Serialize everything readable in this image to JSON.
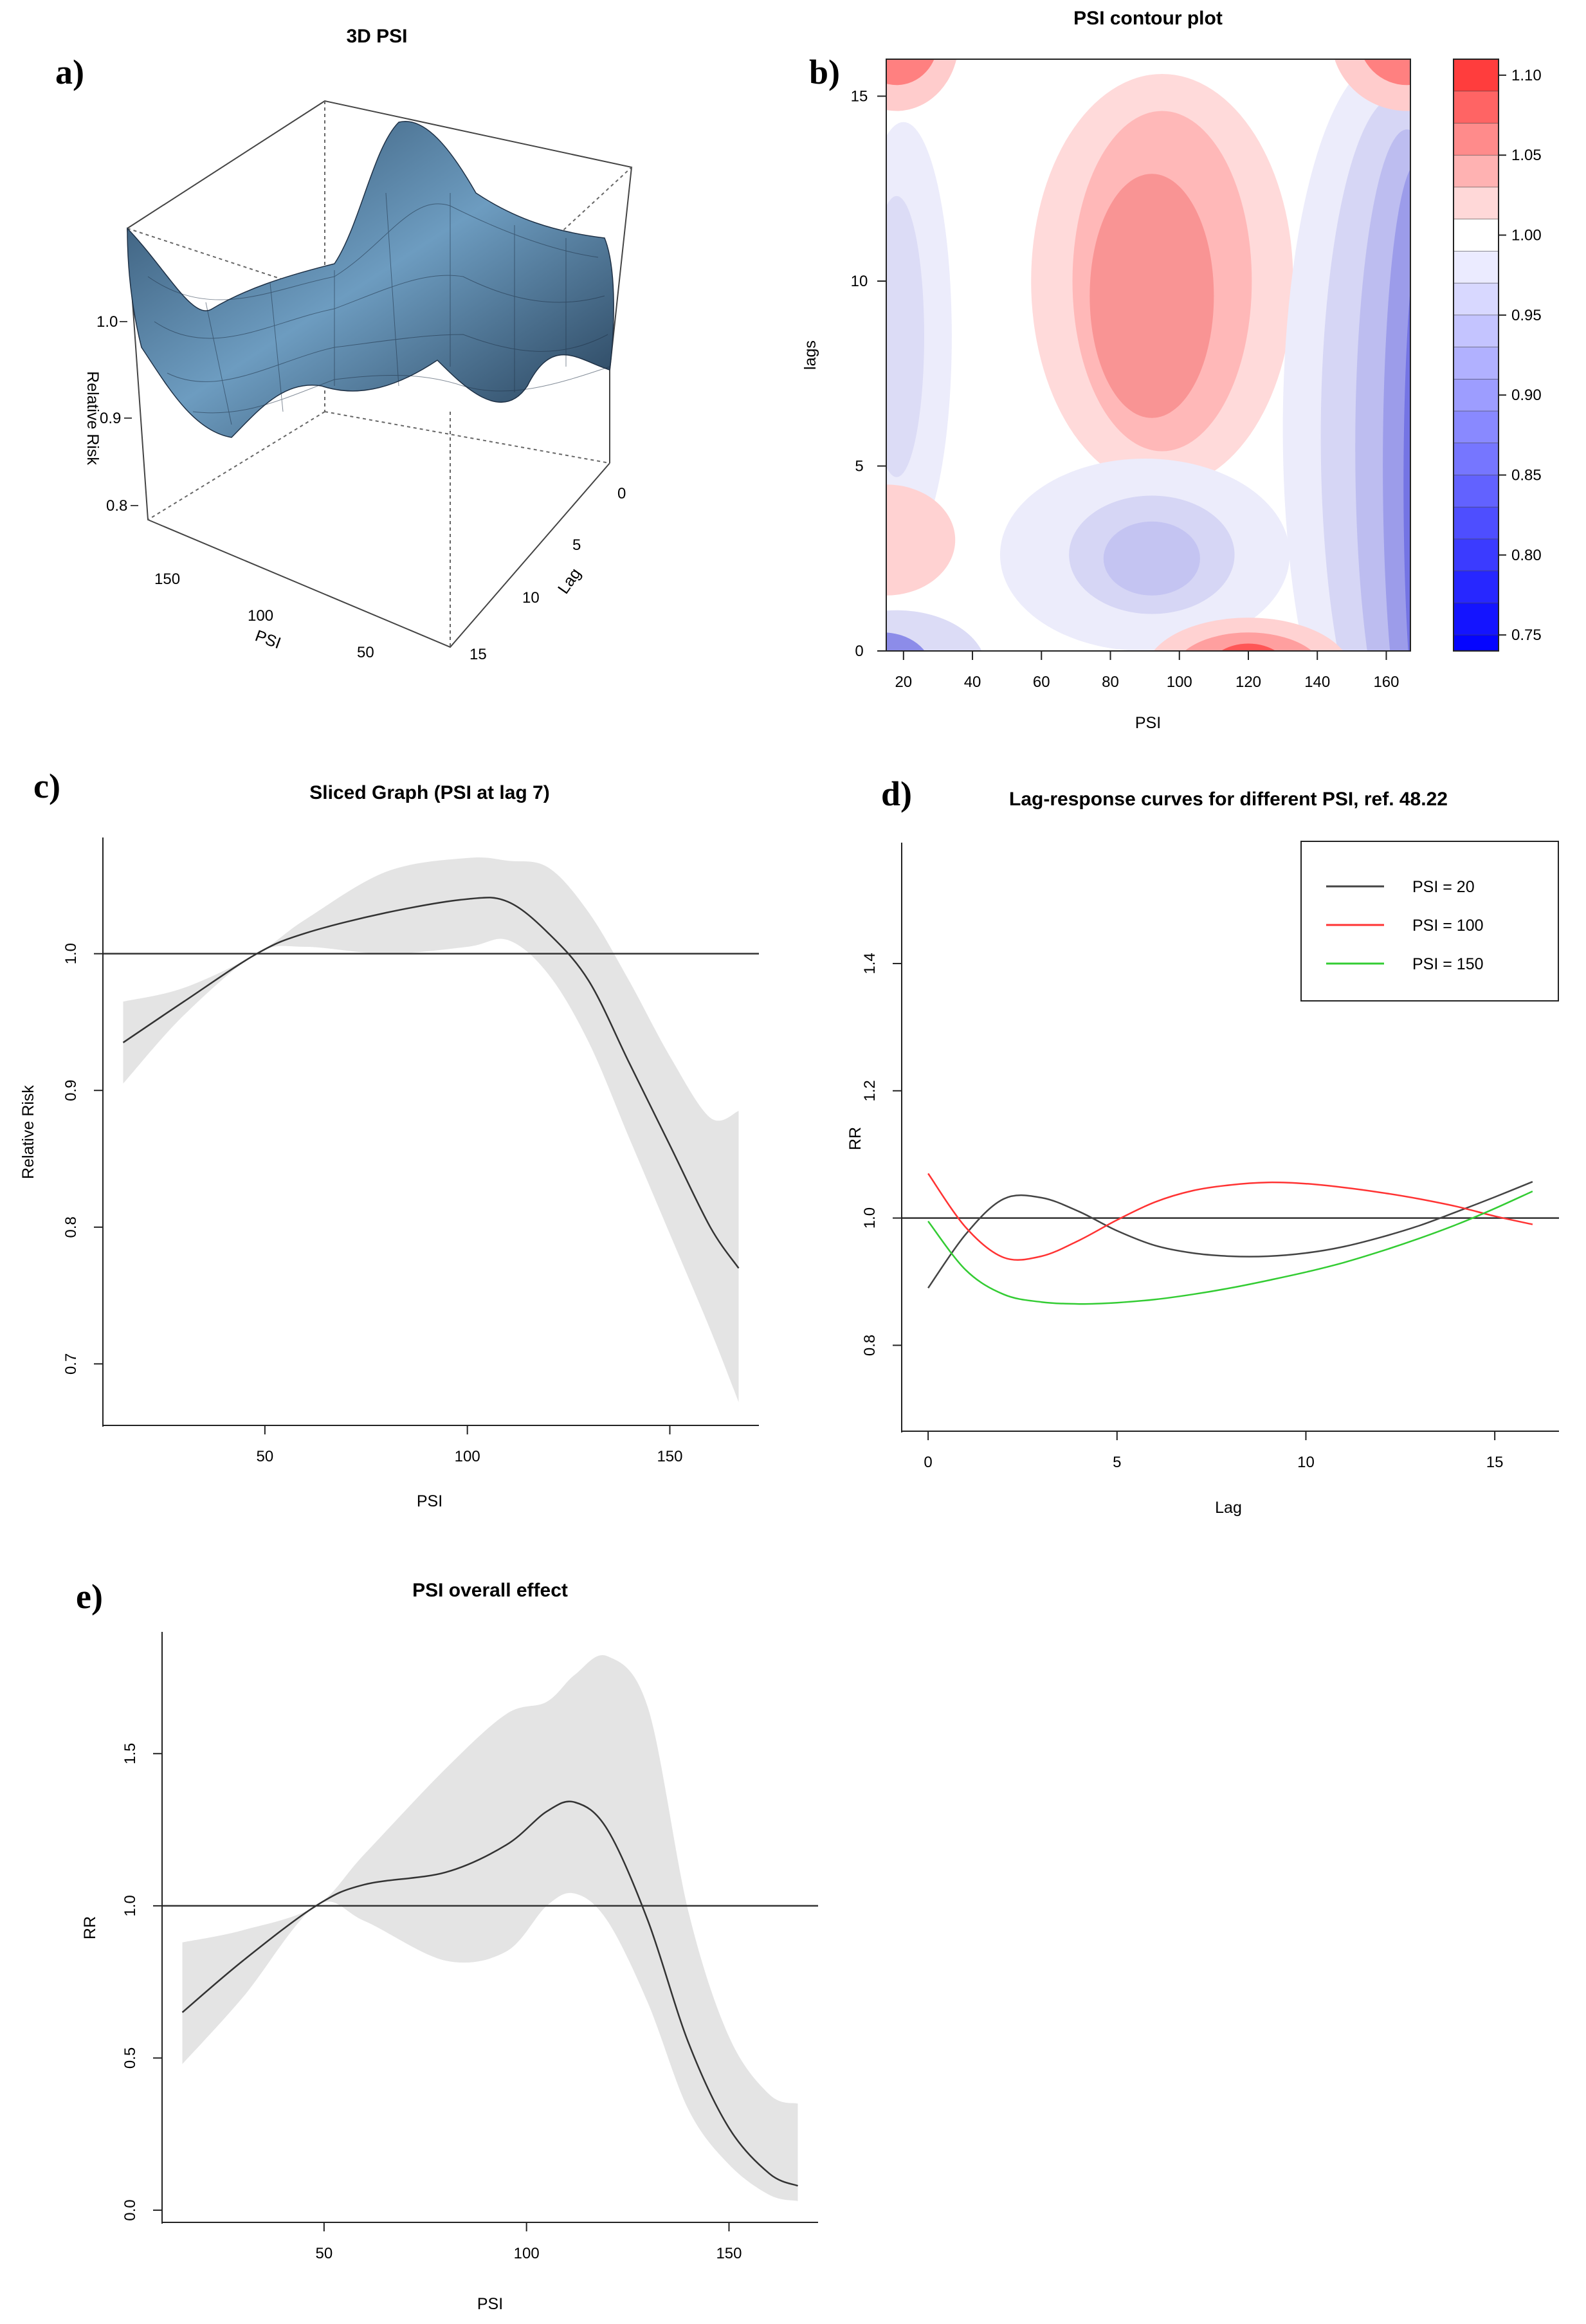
{
  "chart_data": [
    {
      "id": "a",
      "panel_letter": "a)",
      "type": "surface3d",
      "title": "3D PSI",
      "xlabel": "PSI",
      "ylabel": "Lag",
      "zlabel": "Relative Risk",
      "x_ticks": [
        "150",
        "100",
        "50"
      ],
      "y_ticks": [
        "0",
        "5",
        "10",
        "15"
      ],
      "z_ticks": [
        "1.0",
        "0.9",
        "0.8"
      ],
      "surface_color": "#5b87a8"
    },
    {
      "id": "b",
      "panel_letter": "b)",
      "type": "heatmap",
      "title": "PSI contour plot",
      "xlabel": "PSI",
      "ylabel": "lags",
      "x_ticks": [
        20,
        40,
        60,
        80,
        100,
        120,
        140,
        160
      ],
      "y_ticks": [
        0,
        5,
        10,
        15
      ],
      "xlim": [
        15,
        167
      ],
      "ylim": [
        0,
        16
      ],
      "colorbar_ticks": [
        "1.10",
        "1.05",
        "1.00",
        "0.95",
        "0.90",
        "0.85",
        "0.80",
        "0.75"
      ],
      "colorbar_range": [
        0.74,
        1.11
      ],
      "colors": {
        "high": "#ff2a2a",
        "mid": "#ffffff",
        "low": "#0000ff"
      }
    },
    {
      "id": "c",
      "panel_letter": "c)",
      "type": "line",
      "title": "Sliced Graph (PSI at lag 7)",
      "xlabel": "PSI",
      "ylabel": "Relative Risk",
      "x_ticks": [
        50,
        100,
        150
      ],
      "y_ticks": [
        0.7,
        0.8,
        0.9,
        1.0
      ],
      "xlim": [
        10,
        172
      ],
      "ylim": [
        0.655,
        1.085
      ],
      "reference_line": 1.0,
      "series": [
        {
          "name": "estimate",
          "x": [
            15,
            30,
            48,
            60,
            80,
            100,
            110,
            120,
            130,
            140,
            150,
            160,
            167
          ],
          "y": [
            0.935,
            0.965,
            1.0,
            1.015,
            1.03,
            1.04,
            1.038,
            1.015,
            0.98,
            0.92,
            0.86,
            0.8,
            0.77
          ],
          "lower": [
            0.905,
            0.955,
            1.0,
            1.005,
            1.0,
            1.005,
            1.01,
            0.985,
            0.935,
            0.865,
            0.795,
            0.725,
            0.672
          ],
          "upper": [
            0.965,
            0.975,
            1.0,
            1.025,
            1.06,
            1.07,
            1.068,
            1.063,
            1.03,
            0.98,
            0.925,
            0.88,
            0.885
          ]
        }
      ]
    },
    {
      "id": "d",
      "panel_letter": "d)",
      "type": "line",
      "title": "Lag-response curves for different PSI, ref. 48.22",
      "xlabel": "Lag",
      "ylabel": "RR",
      "x_ticks": [
        0,
        5,
        10,
        15
      ],
      "y_ticks": [
        0.8,
        1.0,
        1.2,
        1.4
      ],
      "xlim": [
        -0.7,
        16.7
      ],
      "ylim": [
        0.665,
        1.59
      ],
      "reference_line": 1.0,
      "legend_position": "top-right",
      "series": [
        {
          "name": "PSI = 20",
          "color": "#444444",
          "x": [
            0,
            1,
            2,
            3,
            4,
            5,
            6,
            7,
            8,
            9,
            10,
            11,
            12,
            13,
            14,
            15,
            16
          ],
          "y": [
            0.89,
            0.975,
            1.03,
            1.032,
            1.01,
            0.98,
            0.957,
            0.945,
            0.94,
            0.94,
            0.945,
            0.955,
            0.97,
            0.988,
            1.01,
            1.033,
            1.057
          ]
        },
        {
          "name": "PSI = 100",
          "color": "#ff3333",
          "x": [
            0,
            1,
            2,
            3,
            4,
            5,
            6,
            7,
            8,
            9,
            10,
            11,
            12,
            13,
            14,
            15,
            16
          ],
          "y": [
            1.07,
            0.985,
            0.938,
            0.94,
            0.965,
            0.997,
            1.025,
            1.043,
            1.052,
            1.056,
            1.054,
            1.048,
            1.04,
            1.03,
            1.018,
            1.003,
            0.99
          ]
        },
        {
          "name": "PSI = 150",
          "color": "#33cc33",
          "x": [
            0,
            1,
            2,
            3,
            4,
            5,
            6,
            7,
            8,
            9,
            10,
            11,
            12,
            13,
            14,
            15,
            16
          ],
          "y": [
            0.995,
            0.918,
            0.88,
            0.868,
            0.865,
            0.867,
            0.872,
            0.88,
            0.89,
            0.902,
            0.915,
            0.93,
            0.948,
            0.968,
            0.99,
            1.015,
            1.042
          ]
        }
      ]
    },
    {
      "id": "e",
      "panel_letter": "e)",
      "type": "line",
      "title": "PSI overall effect",
      "xlabel": "PSI",
      "ylabel": "RR",
      "x_ticks": [
        50,
        100,
        150
      ],
      "y_ticks": [
        0.0,
        0.5,
        1.0,
        1.5
      ],
      "xlim": [
        10,
        172
      ],
      "ylim": [
        -0.04,
        1.9
      ],
      "reference_line": 1.0,
      "series": [
        {
          "name": "estimate",
          "x": [
            15,
            30,
            48,
            60,
            80,
            95,
            105,
            112,
            120,
            130,
            140,
            150,
            160,
            167
          ],
          "y": [
            0.65,
            0.82,
            1.0,
            1.07,
            1.11,
            1.2,
            1.31,
            1.34,
            1.25,
            0.95,
            0.55,
            0.27,
            0.12,
            0.08
          ],
          "lower": [
            0.48,
            0.7,
            1.0,
            0.95,
            0.82,
            0.85,
            1.0,
            1.04,
            0.95,
            0.68,
            0.33,
            0.15,
            0.05,
            0.03
          ],
          "upper": [
            0.88,
            0.92,
            1.0,
            1.17,
            1.45,
            1.63,
            1.67,
            1.76,
            1.82,
            1.65,
            0.98,
            0.57,
            0.38,
            0.35
          ]
        }
      ]
    }
  ]
}
